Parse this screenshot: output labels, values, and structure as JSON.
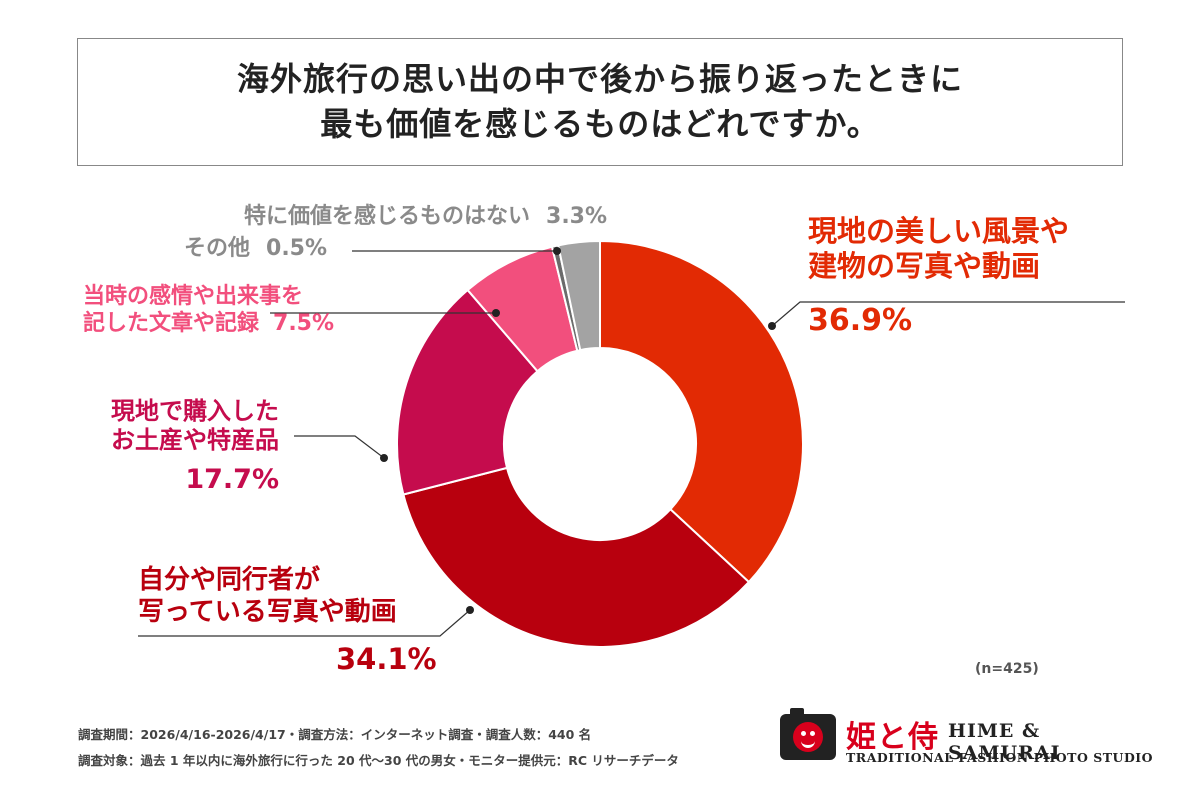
{
  "title": {
    "line1": "海外旅行の思い出の中で後から振り返ったときに",
    "line2": "最も価値を感じるものはどれですか。"
  },
  "chart_data": {
    "type": "pie",
    "donut": true,
    "title": "海外旅行の思い出の中で後から振り返ったときに最も価値を感じるものはどれですか。",
    "legend": "none",
    "slices": [
      {
        "label_lines": [
          "現地の美しい風景や",
          "建物の写真や動画"
        ],
        "value": 36.9,
        "value_text": "36.9%",
        "color": "#e22a04"
      },
      {
        "label_lines": [
          "自分や同行者が",
          "写っている写真や動画"
        ],
        "value": 34.1,
        "value_text": "34.1%",
        "color": "#b8000e"
      },
      {
        "label_lines": [
          "現地で購入した",
          "お土産や特産品"
        ],
        "value": 17.7,
        "value_text": "17.7%",
        "color": "#c50c4d"
      },
      {
        "label_lines": [
          "当時の感情や出来事を",
          "記した文章や記録"
        ],
        "value": 7.5,
        "value_text": "7.5%",
        "color": "#f24f7d"
      },
      {
        "label_lines": [
          "その他"
        ],
        "value": 0.5,
        "value_text": "0.5%",
        "color": "#6b6b6b"
      },
      {
        "label_lines": [
          "特に価値を感じるものはない"
        ],
        "value": 3.3,
        "value_text": "3.3%",
        "color": "#a3a3a3"
      }
    ],
    "n": "(n=425)"
  },
  "footnotes": {
    "line1": "調査期間：2026/4/16-2026/4/17・調査方法：インターネット調査・調査人数：440 名",
    "line2": "調査対象：過去 1 年以内に海外旅行に行った 20 代〜30 代の男女・モニター提供元：RC リサーチデータ"
  },
  "logo": {
    "jp": "姫と侍",
    "en": "HIME & SAMURAI",
    "sub": "TRADITIONAL FASHION PHOTO STUDIO"
  }
}
